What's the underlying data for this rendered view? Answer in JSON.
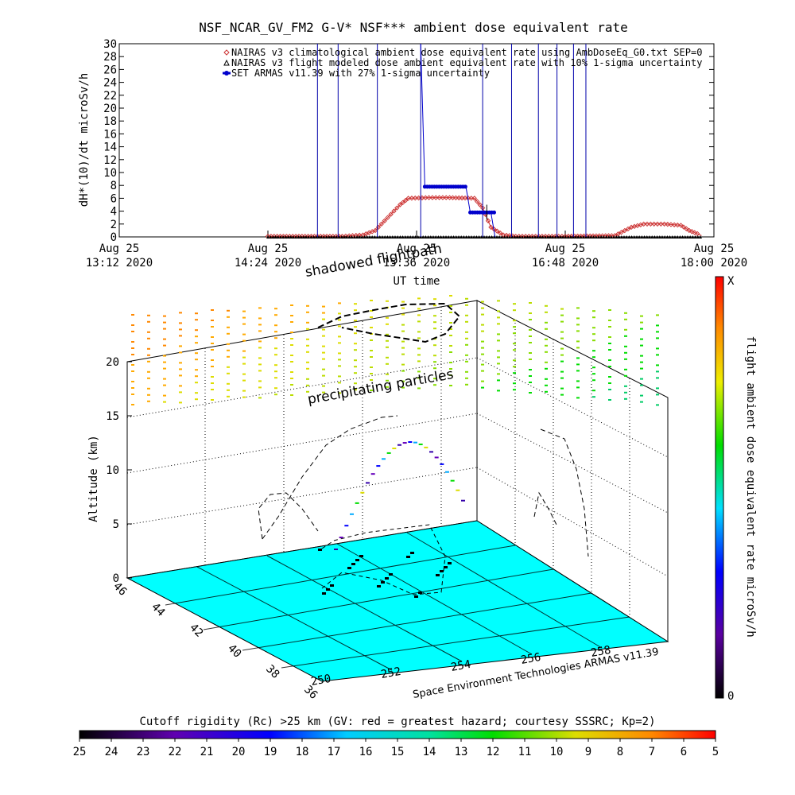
{
  "page_title": "NSF_NCAR_GV_FM2 G-V* NSF*** ambient dose equivalent rate",
  "chart_data": [
    {
      "type": "line",
      "title": "NSF_NCAR_GV_FM2 G-V* NSF*** ambient dose equivalent rate",
      "xlabel": "UT time",
      "ylabel": "dH*(10)/dt microSv/h",
      "ylim": [
        0,
        30
      ],
      "yticks": [
        0,
        2,
        4,
        6,
        8,
        10,
        12,
        14,
        16,
        18,
        20,
        22,
        24,
        26,
        28,
        30
      ],
      "xticks": [
        {
          "line1": "Aug 25",
          "line2": "13:12 2020"
        },
        {
          "line1": "Aug 25",
          "line2": "14:24 2020"
        },
        {
          "line1": "Aug 25",
          "line2": "15:36 2020"
        },
        {
          "line1": "Aug 25",
          "line2": "16:48 2020"
        },
        {
          "line1": "Aug 25",
          "line2": "18:00 2020"
        }
      ],
      "x_units": "minutes after 13:12 UT",
      "xlim": [
        0,
        288
      ],
      "legend_position": "top",
      "series": [
        {
          "name": "NAIRAS v3 climatological ambient dose equivalent rate using AmbDoseEq_G0.txt SEP=0",
          "color": "#cc3333",
          "x": [
            72,
            96,
            108,
            118,
            124,
            130,
            136,
            140,
            150,
            160,
            172,
            176,
            180,
            186,
            192,
            200,
            216,
            240,
            248,
            254,
            264,
            272,
            276,
            280,
            282
          ],
          "values": [
            0.1,
            0.1,
            0.1,
            0.3,
            1.0,
            3.0,
            5.0,
            6.0,
            6.1,
            6.1,
            6.0,
            4.5,
            1.5,
            0.3,
            0.1,
            0.1,
            0.1,
            0.2,
            1.5,
            2.0,
            2.0,
            1.8,
            1.0,
            0.5,
            0.2
          ]
        },
        {
          "name": "NAIRAS v3 flight modeled dose ambient equivalent rate with 10% 1-sigma uncertainty",
          "color": "#000000",
          "x": [
            72,
            100,
            130,
            160,
            190,
            220,
            250,
            282
          ],
          "values": [
            0,
            0,
            0,
            0,
            0,
            0,
            0,
            0
          ]
        },
        {
          "name": "SET ARMAS v11.39 with 27% 1-sigma uncertainty",
          "color": "#0000cc",
          "x": [
            100,
            146,
            148,
            150,
            158,
            165,
            168,
            170,
            172,
            176,
            180,
            182,
            200,
            210,
            220,
            238,
            246
          ],
          "values": [
            0,
            30,
            7.8,
            7.8,
            7.8,
            7.8,
            7.6,
            3.8,
            3.8,
            3.8,
            3.8,
            0,
            30,
            0,
            30,
            30,
            30
          ]
        }
      ]
    },
    {
      "type": "scatter",
      "subtype": "3d-trajectory",
      "zlabel": "Altitude (km)",
      "zticks": [
        0,
        5,
        10,
        15,
        20
      ],
      "lat_ticks": [
        46,
        44,
        42,
        40,
        38,
        36
      ],
      "lon_ticks": [
        250,
        252,
        254,
        256,
        258
      ],
      "colorbar_label": "flight ambient dose equivalent rate microSv/h",
      "colorbar_top": "X",
      "colorbar_bottom": "0",
      "annotations": [
        "shadowed flightpath",
        "precipitating particles"
      ],
      "credit": "Space Environment Technologies ARMAS v11.39"
    },
    {
      "type": "heatmap",
      "subtype": "colorbar",
      "title": "Cutoff rigidity (Rc) >25 km (GV: red = greatest hazard; courtesy SSSRC; Kp=2)",
      "ticks": [
        25,
        24,
        23,
        22,
        21,
        20,
        19,
        18,
        17,
        16,
        15,
        14,
        13,
        12,
        11,
        10,
        9,
        8,
        7,
        6,
        5
      ]
    }
  ]
}
